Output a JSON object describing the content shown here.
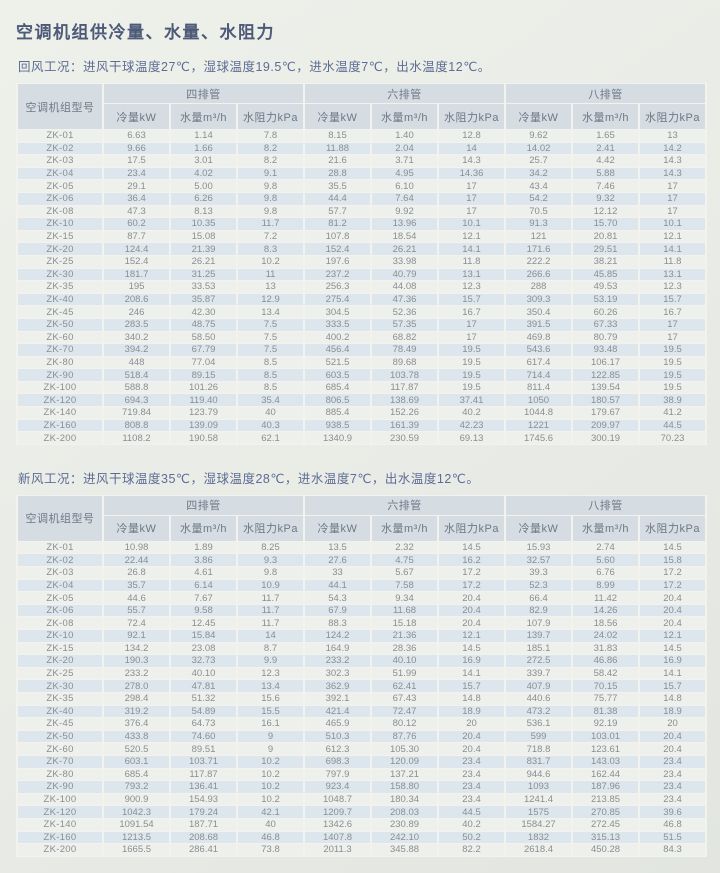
{
  "page": {
    "title": "空调机组供冷量、水量、水阻力"
  },
  "colors": {
    "page_bg": "#e9ebe6",
    "header_bg": "#d5dce2",
    "row_light": "#eef0ec",
    "row_blue": "#dde6ec",
    "title_text": "#4d5a78",
    "condition_text": "#5d6c94",
    "cell_text": "#898e92"
  },
  "tables": [
    {
      "id": "return-air",
      "condition": "回风工况：进风干球温度27℃，湿球温度19.5℃，进水温度7℃，出水温度12℃。",
      "model_header": "空调机组型号",
      "groups": [
        "四排管",
        "六排管",
        "八排管"
      ],
      "sub_headers": [
        "冷量kW",
        "水量m³/h",
        "水阻力kPa"
      ],
      "rows": [
        [
          "ZK-01",
          "6.63",
          "1.14",
          "7.8",
          "8.15",
          "1.40",
          "12.8",
          "9.62",
          "1.65",
          "13"
        ],
        [
          "ZK-02",
          "9.66",
          "1.66",
          "8.2",
          "11.88",
          "2.04",
          "14",
          "14.02",
          "2.41",
          "14.2"
        ],
        [
          "ZK-03",
          "17.5",
          "3.01",
          "8.2",
          "21.6",
          "3.71",
          "14.3",
          "25.7",
          "4.42",
          "14.3"
        ],
        [
          "ZK-04",
          "23.4",
          "4.02",
          "9.1",
          "28.8",
          "4.95",
          "14.36",
          "34.2",
          "5.88",
          "14.3"
        ],
        [
          "ZK-05",
          "29.1",
          "5.00",
          "9.8",
          "35.5",
          "6.10",
          "17",
          "43.4",
          "7.46",
          "17"
        ],
        [
          "ZK-06",
          "36.4",
          "6.26",
          "9.8",
          "44.4",
          "7.64",
          "17",
          "54.2",
          "9.32",
          "17"
        ],
        [
          "ZK-08",
          "47.3",
          "8.13",
          "9.8",
          "57.7",
          "9.92",
          "17",
          "70.5",
          "12.12",
          "17"
        ],
        [
          "ZK-10",
          "60.2",
          "10.35",
          "11.7",
          "81.2",
          "13.96",
          "10.1",
          "91.3",
          "15.70",
          "10.1"
        ],
        [
          "ZK-15",
          "87.7",
          "15.08",
          "7.2",
          "107.8",
          "18.54",
          "12.1",
          "121",
          "20.81",
          "12.1"
        ],
        [
          "ZK-20",
          "124.4",
          "21.39",
          "8.3",
          "152.4",
          "26.21",
          "14.1",
          "171.6",
          "29.51",
          "14.1"
        ],
        [
          "ZK-25",
          "152.4",
          "26.21",
          "10.2",
          "197.6",
          "33.98",
          "11.8",
          "222.2",
          "38.21",
          "11.8"
        ],
        [
          "ZK-30",
          "181.7",
          "31.25",
          "11",
          "237.2",
          "40.79",
          "13.1",
          "266.6",
          "45.85",
          "13.1"
        ],
        [
          "ZK-35",
          "195",
          "33.53",
          "13",
          "256.3",
          "44.08",
          "12.3",
          "288",
          "49.53",
          "12.3"
        ],
        [
          "ZK-40",
          "208.6",
          "35.87",
          "12.9",
          "275.4",
          "47.36",
          "15.7",
          "309.3",
          "53.19",
          "15.7"
        ],
        [
          "ZK-45",
          "246",
          "42.30",
          "13.4",
          "304.5",
          "52.36",
          "16.7",
          "350.4",
          "60.26",
          "16.7"
        ],
        [
          "ZK-50",
          "283.5",
          "48.75",
          "7.5",
          "333.5",
          "57.35",
          "17",
          "391.5",
          "67.33",
          "17"
        ],
        [
          "ZK-60",
          "340.2",
          "58.50",
          "7.5",
          "400.2",
          "68.82",
          "17",
          "469.8",
          "80.79",
          "17"
        ],
        [
          "ZK-70",
          "394.2",
          "67.79",
          "7.5",
          "456.4",
          "78.49",
          "19.5",
          "543.6",
          "93.48",
          "19.5"
        ],
        [
          "ZK-80",
          "448",
          "77.04",
          "8.5",
          "521.5",
          "89.68",
          "19.5",
          "617.4",
          "106.17",
          "19.5"
        ],
        [
          "ZK-90",
          "518.4",
          "89.15",
          "8.5",
          "603.5",
          "103.78",
          "19.5",
          "714.4",
          "122.85",
          "19.5"
        ],
        [
          "ZK-100",
          "588.8",
          "101.26",
          "8.5",
          "685.4",
          "117.87",
          "19.5",
          "811.4",
          "139.54",
          "19.5"
        ],
        [
          "ZK-120",
          "694.3",
          "119.40",
          "35.4",
          "806.5",
          "138.69",
          "37.41",
          "1050",
          "180.57",
          "38.9"
        ],
        [
          "ZK-140",
          "719.84",
          "123.79",
          "40",
          "885.4",
          "152.26",
          "40.2",
          "1044.8",
          "179.67",
          "41.2"
        ],
        [
          "ZK-160",
          "808.8",
          "139.09",
          "40.3",
          "938.5",
          "161.39",
          "42.23",
          "1221",
          "209.97",
          "44.5"
        ],
        [
          "ZK-200",
          "1108.2",
          "190.58",
          "62.1",
          "1340.9",
          "230.59",
          "69.13",
          "1745.6",
          "300.19",
          "70.23"
        ]
      ]
    },
    {
      "id": "fresh-air",
      "condition": "新风工况：进风干球温度35℃，湿球温度28℃，进水温度7℃，出水温度12℃。",
      "model_header": "空调机组型号",
      "groups": [
        "四排管",
        "六排管",
        "八排管"
      ],
      "sub_headers": [
        "冷量kW",
        "水量m³/h",
        "水阻力kPa"
      ],
      "rows": [
        [
          "ZK-01",
          "10.98",
          "1.89",
          "8.25",
          "13.5",
          "2.32",
          "14.5",
          "15.93",
          "2.74",
          "14.5"
        ],
        [
          "ZK-02",
          "22.44",
          "3.86",
          "9.3",
          "27.6",
          "4.75",
          "16.2",
          "32.57",
          "5.60",
          "15.8"
        ],
        [
          "ZK-03",
          "26.8",
          "4.61",
          "9.8",
          "33",
          "5.67",
          "17.2",
          "39.3",
          "6.76",
          "17.2"
        ],
        [
          "ZK-04",
          "35.7",
          "6.14",
          "10.9",
          "44.1",
          "7.58",
          "17.2",
          "52.3",
          "8.99",
          "17.2"
        ],
        [
          "ZK-05",
          "44.6",
          "7.67",
          "11.7",
          "54.3",
          "9.34",
          "20.4",
          "66.4",
          "11.42",
          "20.4"
        ],
        [
          "ZK-06",
          "55.7",
          "9.58",
          "11.7",
          "67.9",
          "11.68",
          "20.4",
          "82.9",
          "14.26",
          "20.4"
        ],
        [
          "ZK-08",
          "72.4",
          "12.45",
          "11.7",
          "88.3",
          "15.18",
          "20.4",
          "107.9",
          "18.56",
          "20.4"
        ],
        [
          "ZK-10",
          "92.1",
          "15.84",
          "14",
          "124.2",
          "21.36",
          "12.1",
          "139.7",
          "24.02",
          "12.1"
        ],
        [
          "ZK-15",
          "134.2",
          "23.08",
          "8.7",
          "164.9",
          "28.36",
          "14.5",
          "185.1",
          "31.83",
          "14.5"
        ],
        [
          "ZK-20",
          "190.3",
          "32.73",
          "9.9",
          "233.2",
          "40.10",
          "16.9",
          "272.5",
          "46.86",
          "16.9"
        ],
        [
          "ZK-25",
          "233.2",
          "40.10",
          "12.3",
          "302.3",
          "51.99",
          "14.1",
          "339.7",
          "58.42",
          "14.1"
        ],
        [
          "ZK-30",
          "278.0",
          "47.81",
          "13.4",
          "362.9",
          "62.41",
          "15.7",
          "407.9",
          "70.15",
          "15.7"
        ],
        [
          "ZK-35",
          "298.4",
          "51.32",
          "15.6",
          "392.1",
          "67.43",
          "14.8",
          "440.6",
          "75.77",
          "14.8"
        ],
        [
          "ZK-40",
          "319.2",
          "54.89",
          "15.5",
          "421.4",
          "72.47",
          "18.9",
          "473.2",
          "81.38",
          "18.9"
        ],
        [
          "ZK-45",
          "376.4",
          "64.73",
          "16.1",
          "465.9",
          "80.12",
          "20",
          "536.1",
          "92.19",
          "20"
        ],
        [
          "ZK-50",
          "433.8",
          "74.60",
          "9",
          "510.3",
          "87.76",
          "20.4",
          "599",
          "103.01",
          "20.4"
        ],
        [
          "ZK-60",
          "520.5",
          "89.51",
          "9",
          "612.3",
          "105.30",
          "20.4",
          "718.8",
          "123.61",
          "20.4"
        ],
        [
          "ZK-70",
          "603.1",
          "103.71",
          "10.2",
          "698.3",
          "120.09",
          "23.4",
          "831.7",
          "143.03",
          "23.4"
        ],
        [
          "ZK-80",
          "685.4",
          "117.87",
          "10.2",
          "797.9",
          "137.21",
          "23.4",
          "944.6",
          "162.44",
          "23.4"
        ],
        [
          "ZK-90",
          "793.2",
          "136.41",
          "10.2",
          "923.4",
          "158.80",
          "23.4",
          "1093",
          "187.96",
          "23.4"
        ],
        [
          "ZK-100",
          "900.9",
          "154.93",
          "10.2",
          "1048.7",
          "180.34",
          "23.4",
          "1241.4",
          "213.85",
          "23.4"
        ],
        [
          "ZK-120",
          "1042.3",
          "179.24",
          "42.1",
          "1209.7",
          "208.03",
          "44.5",
          "1575",
          "270.85",
          "39.6"
        ],
        [
          "ZK-140",
          "1091.54",
          "187.71",
          "40",
          "1342.6",
          "230.89",
          "40.2",
          "1584.27",
          "272.45",
          "46.8"
        ],
        [
          "ZK-160",
          "1213.5",
          "208.68",
          "46.8",
          "1407.8",
          "242.10",
          "50.2",
          "1832",
          "315.13",
          "51.5"
        ],
        [
          "ZK-200",
          "1665.5",
          "286.41",
          "73.8",
          "2011.3",
          "345.88",
          "82.2",
          "2618.4",
          "450.28",
          "84.3"
        ]
      ]
    }
  ]
}
